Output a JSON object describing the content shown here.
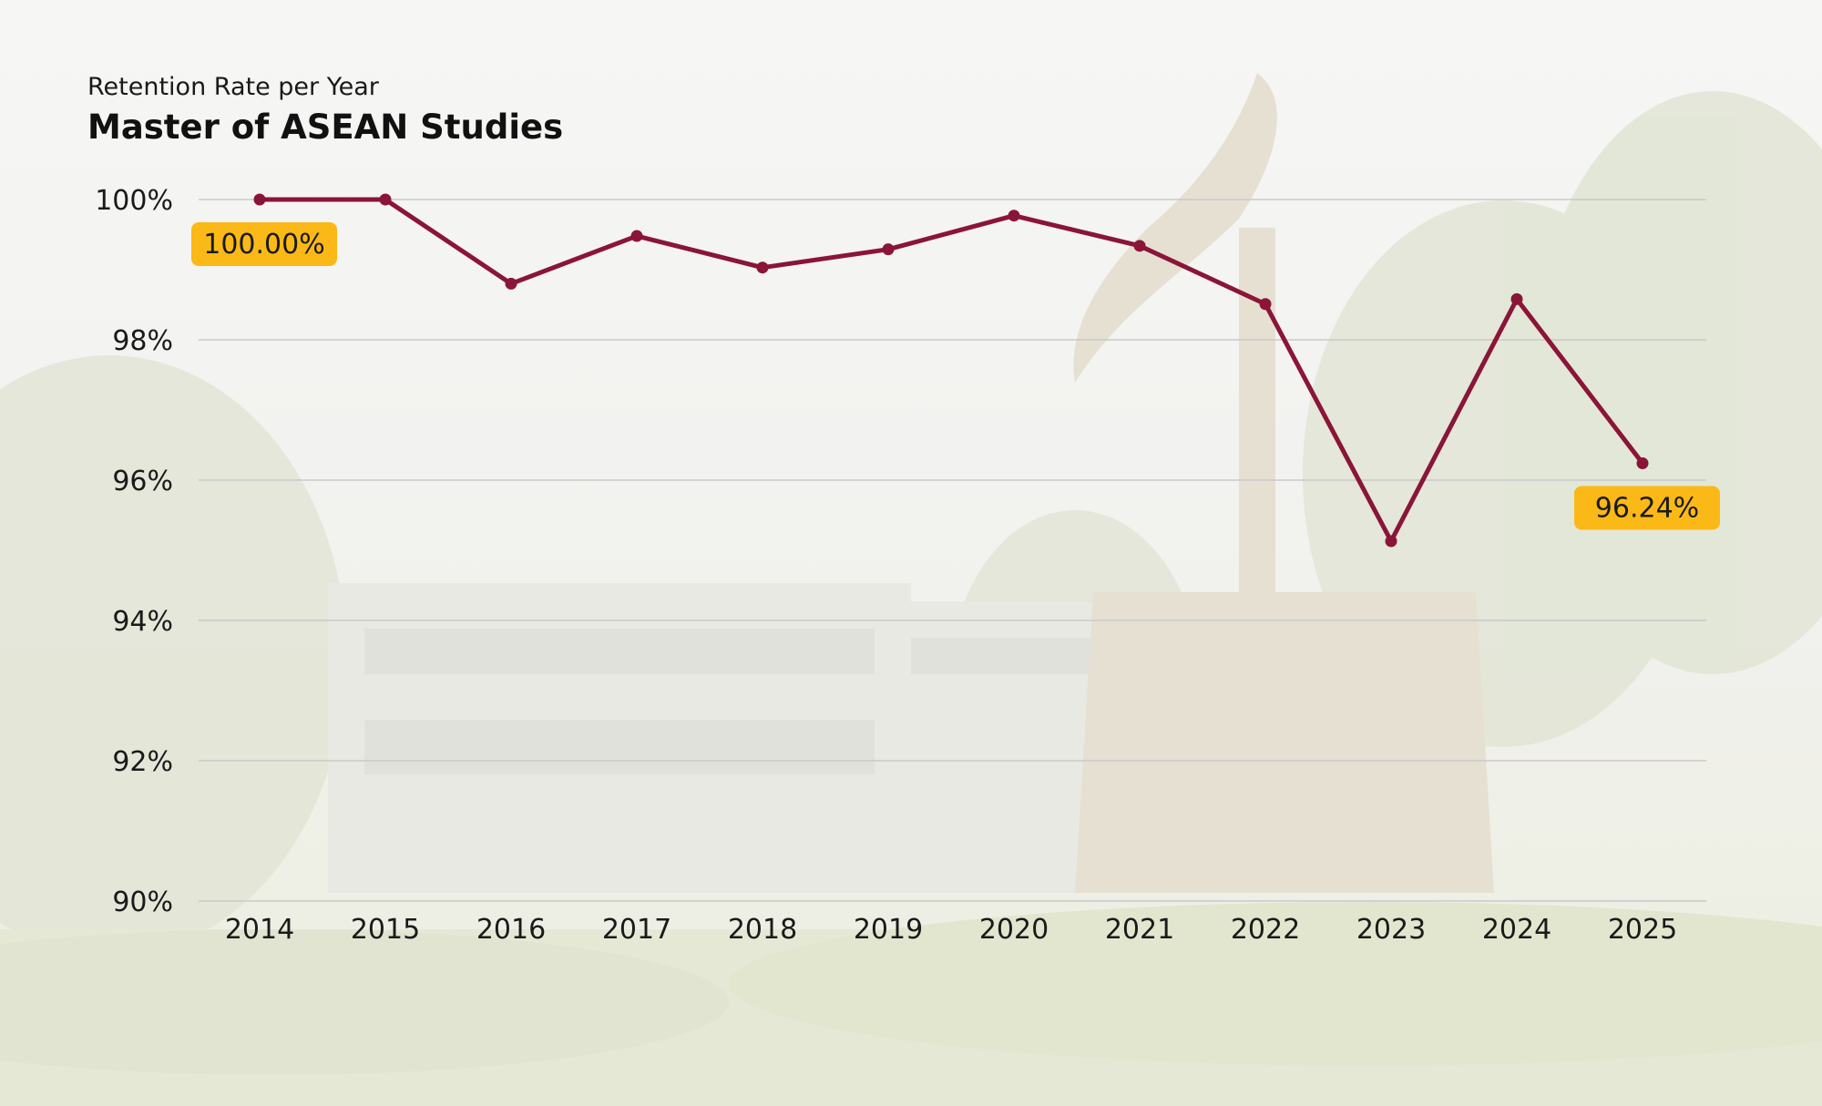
{
  "chart_data": {
    "type": "line",
    "subtitle": "Retention Rate per Year",
    "title": "Master of ASEAN Studies",
    "x": [
      "2014",
      "2015",
      "2016",
      "2017",
      "2018",
      "2019",
      "2020",
      "2021",
      "2022",
      "2023",
      "2024",
      "2025"
    ],
    "series": [
      {
        "values": [
          100.0,
          100.0,
          98.8,
          99.48,
          99.03,
          99.29,
          99.77,
          99.34,
          98.51,
          95.13,
          98.58,
          96.24
        ],
        "color": "#8a1538"
      }
    ],
    "ylim": [
      90,
      100
    ],
    "yticks": [
      90,
      92,
      94,
      96,
      98,
      100
    ],
    "ytick_labels": [
      "90%",
      "92%",
      "94%",
      "96%",
      "98%",
      "100%"
    ],
    "grid": true,
    "annotations": [
      {
        "x": "2014",
        "label": "100.00%"
      },
      {
        "x": "2025",
        "label": "96.24%"
      }
    ],
    "callout_color": "#fbb917"
  }
}
